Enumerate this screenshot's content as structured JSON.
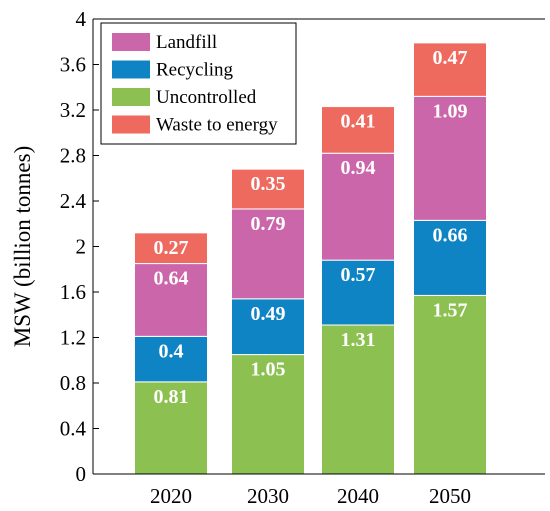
{
  "chart_data": {
    "type": "bar",
    "stacked": true,
    "categories": [
      "2020",
      "2030",
      "2040",
      "2050"
    ],
    "series": [
      {
        "name": "Uncontrolled",
        "color": "#8CC152",
        "values": [
          0.81,
          1.05,
          1.31,
          1.57
        ]
      },
      {
        "name": "Recycling",
        "color": "#0F84C4",
        "values": [
          0.4,
          0.49,
          0.57,
          0.66
        ]
      },
      {
        "name": "Landfill",
        "color": "#CC66AA",
        "values": [
          0.64,
          0.79,
          0.94,
          1.09
        ]
      },
      {
        "name": "Waste to energy",
        "color": "#EE6A5F",
        "values": [
          0.27,
          0.35,
          0.41,
          0.47
        ]
      }
    ],
    "legend_order": [
      "Landfill",
      "Recycling",
      "Uncontrolled",
      "Waste to energy"
    ],
    "legend_position": "top-left",
    "ylabel": "MSW (billion tonnes)",
    "xlabel": "",
    "ylim": [
      0,
      4
    ],
    "yticks": [
      "0",
      "0.4",
      "0.8",
      "1.2",
      "1.6",
      "2",
      "2.4",
      "2.8",
      "3.2",
      "3.6",
      "4"
    ],
    "grid": false
  }
}
